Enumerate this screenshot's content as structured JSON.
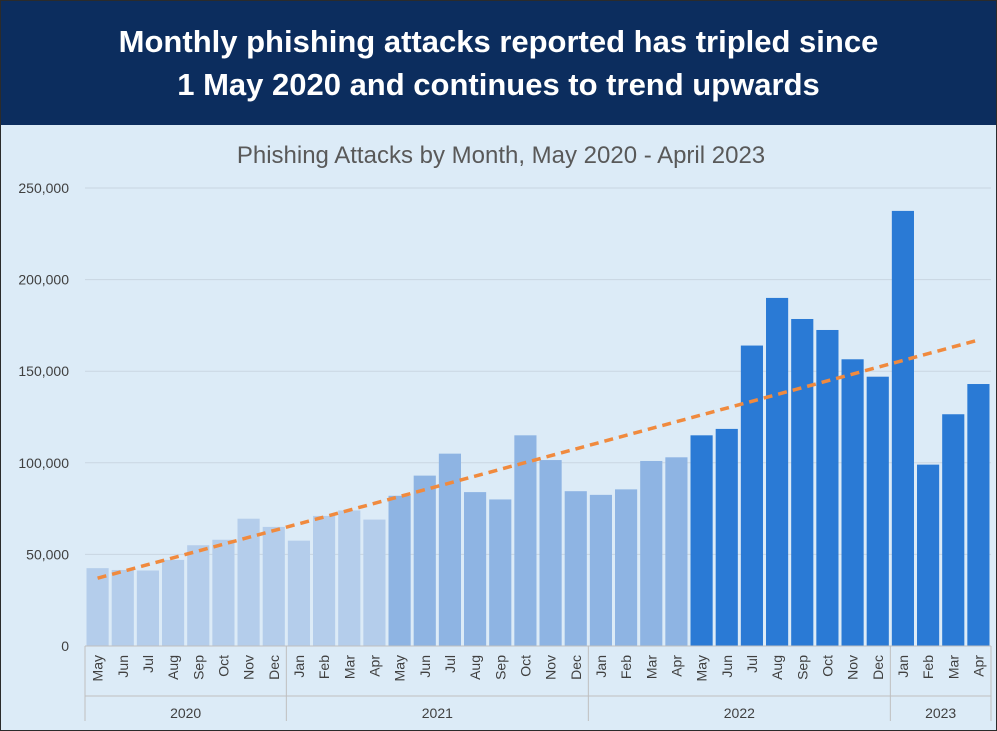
{
  "headline": {
    "line1": "Monthly phishing attacks reported has tripled since",
    "line2": "1 May 2020 and continues to trend upwards"
  },
  "colors": {
    "banner": "#0c2d5e",
    "background": "#dcebf7",
    "bar_2020": "#b4cdeb",
    "bar_2021": "#8eb4e3",
    "bar_2022_h1": "#8eb4e3",
    "bar_2022_h2": "#2a7ad5",
    "trend": "#f08a3e"
  },
  "chart_data": {
    "type": "bar",
    "title": "Phishing Attacks by Month, May 2020 - April 2023",
    "xlabel": "",
    "ylabel": "",
    "ylim": [
      0,
      250000
    ],
    "yticks": [
      0,
      50000,
      100000,
      150000,
      200000,
      250000
    ],
    "ytick_labels": [
      "0",
      "50,000",
      "100,000",
      "150,000",
      "200,000",
      "250,000"
    ],
    "grid": true,
    "categories": [
      "May",
      "Jun",
      "Jul",
      "Aug",
      "Sep",
      "Oct",
      "Nov",
      "Dec",
      "Jan",
      "Feb",
      "Mar",
      "Apr",
      "May",
      "Jun",
      "Jul",
      "Aug",
      "Sep",
      "Oct",
      "Nov",
      "Dec",
      "Jan",
      "Feb",
      "Mar",
      "Apr",
      "May",
      "Jun",
      "Jul",
      "Aug",
      "Sep",
      "Oct",
      "Nov",
      "Dec",
      "Jan",
      "Feb",
      "Mar",
      "Apr"
    ],
    "values": [
      42500,
      41500,
      41200,
      47000,
      55000,
      58000,
      69500,
      65000,
      57500,
      71000,
      74000,
      69000,
      82000,
      93000,
      105000,
      84000,
      80000,
      115000,
      101500,
      84500,
      82500,
      85500,
      101000,
      103000,
      115000,
      118500,
      164000,
      190000,
      178500,
      172500,
      156500,
      147000,
      237500,
      99000,
      126500,
      143000
    ],
    "bar_color_keys": [
      "bar_2020",
      "bar_2020",
      "bar_2020",
      "bar_2020",
      "bar_2020",
      "bar_2020",
      "bar_2020",
      "bar_2020",
      "bar_2020",
      "bar_2020",
      "bar_2020",
      "bar_2020",
      "bar_2021",
      "bar_2021",
      "bar_2021",
      "bar_2021",
      "bar_2021",
      "bar_2021",
      "bar_2021",
      "bar_2021",
      "bar_2022_h1",
      "bar_2022_h1",
      "bar_2022_h1",
      "bar_2022_h1",
      "bar_2022_h2",
      "bar_2022_h2",
      "bar_2022_h2",
      "bar_2022_h2",
      "bar_2022_h2",
      "bar_2022_h2",
      "bar_2022_h2",
      "bar_2022_h2",
      "bar_2022_h2",
      "bar_2022_h2",
      "bar_2022_h2",
      "bar_2022_h2"
    ],
    "year_groups": [
      {
        "label": "2020",
        "start": 0,
        "end": 7
      },
      {
        "label": "2021",
        "start": 8,
        "end": 19
      },
      {
        "label": "2022",
        "start": 20,
        "end": 31
      },
      {
        "label": "2023",
        "start": 32,
        "end": 35
      }
    ],
    "trendline": {
      "start_value": 37000,
      "end_value": 167000,
      "style": "dashed"
    }
  }
}
